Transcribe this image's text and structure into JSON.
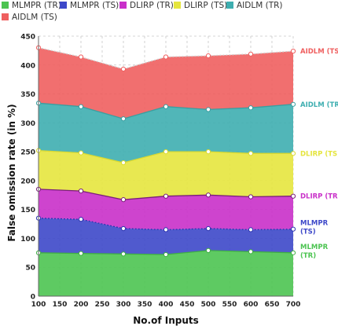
{
  "chart_data": {
    "type": "area",
    "title": "",
    "xlabel": "No.of Inputs",
    "ylabel": "False omission rate (in %)",
    "x": [
      100,
      200,
      300,
      400,
      500,
      600,
      700
    ],
    "xticks": [
      100,
      150,
      200,
      250,
      300,
      350,
      400,
      450,
      500,
      550,
      600,
      650,
      700
    ],
    "xlim": [
      100,
      700
    ],
    "yticks": [
      0,
      50,
      100,
      150,
      200,
      250,
      300,
      350,
      400,
      450
    ],
    "ylim": [
      0,
      450
    ],
    "stacked": true,
    "grid": true,
    "legend_position": "top",
    "series": [
      {
        "name": "MLMPR (TR)",
        "label": "MLMPR (TR)",
        "color": "#4cc451",
        "values": [
          75,
          74,
          73,
          72,
          79,
          77,
          75
        ]
      },
      {
        "name": "MLMPR (TS)",
        "label": "MLMPR (TS)",
        "color": "#3d48c9",
        "values": [
          135,
          133,
          117,
          115,
          117,
          115,
          116
        ]
      },
      {
        "name": "DLIRP (TR)",
        "label": "DLIRP (TR)",
        "color": "#c930c9",
        "values": [
          185,
          182,
          167,
          173,
          175,
          172,
          173
        ]
      },
      {
        "name": "DLIRP (TS)",
        "label": "DLIRP (TS)",
        "color": "#e5e53e",
        "values": [
          252,
          248,
          231,
          250,
          250,
          247,
          247
        ]
      },
      {
        "name": "AIDLM (TR)",
        "label": "AIDLM (TR)",
        "color": "#3eaeb0",
        "values": [
          334,
          328,
          307,
          328,
          323,
          326,
          332
        ]
      },
      {
        "name": "AIDLM (TS)",
        "label": "AIDLM (TS)",
        "color": "#ef5f5f",
        "values": [
          430,
          414,
          393,
          414,
          416,
          419,
          424
        ]
      }
    ]
  }
}
